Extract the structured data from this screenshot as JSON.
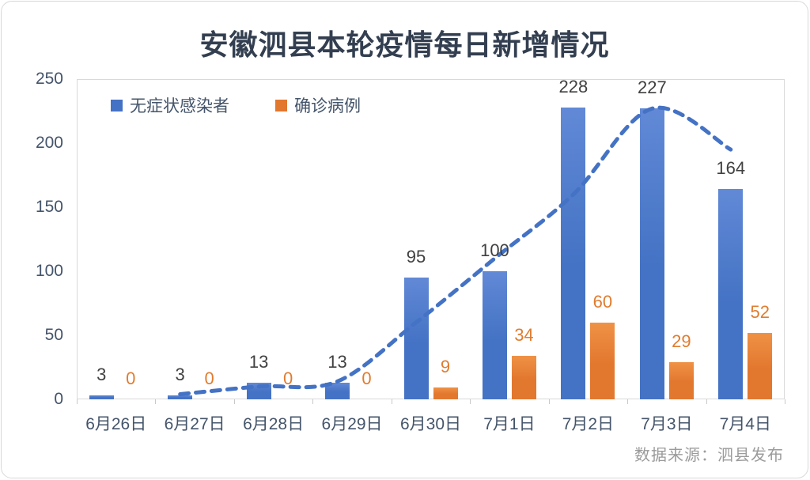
{
  "title": "安徽泗县本轮疫情每日新增情况",
  "source_note": "数据来源：泗县发布",
  "colors": {
    "title_text": "#333F50",
    "axis_text": "#44546A",
    "plot_border": "#D9D9D9",
    "source_text": "#9B9B9B",
    "blue_series": "#4472C4",
    "orange_series": "#E2772E",
    "trend_line": "#4472C4"
  },
  "legend": {
    "items": [
      {
        "label": "无症状感染者",
        "color": "#4472C4"
      },
      {
        "label": "确诊病例",
        "color": "#E2772E"
      }
    ]
  },
  "chart_data": {
    "type": "bar",
    "title": "安徽泗县本轮疫情每日新增情况",
    "categories": [
      "6月26日",
      "6月27日",
      "6月28日",
      "6月29日",
      "6月30日",
      "7月1日",
      "7月2日",
      "7月3日",
      "7月4日"
    ],
    "series": [
      {
        "name": "无症状感染者",
        "kind": "bar",
        "color": "#4472C4",
        "color_light": "#6189D6",
        "label_color": "#404040",
        "values": [
          3,
          3,
          13,
          13,
          95,
          100,
          228,
          227,
          164
        ]
      },
      {
        "name": "确诊病例",
        "kind": "bar",
        "color": "#E2772E",
        "color_light": "#EF9246",
        "label_color": "#E07C2E",
        "values": [
          0,
          0,
          0,
          0,
          9,
          34,
          60,
          29,
          52
        ]
      },
      {
        "name": "趋势虚线",
        "kind": "dashed-line",
        "color": "#4472C4",
        "values": [
          null,
          4,
          10,
          14,
          60,
          110,
          160,
          227,
          195
        ]
      }
    ],
    "ylim": [
      0,
      250
    ],
    "yticks": [
      0,
      50,
      100,
      150,
      200,
      250
    ],
    "grid": false,
    "legend_position": "top-left-inside",
    "data_labels": true
  }
}
